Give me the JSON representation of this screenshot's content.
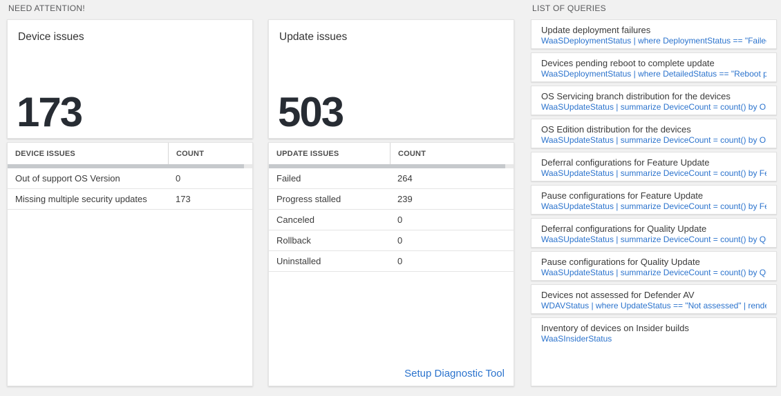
{
  "colors": {
    "accent_blue": "#2b73cd",
    "big_number_color": "#272c33",
    "page_background": "#f1f1f1"
  },
  "sections": {
    "need_attention": {
      "label": "NEED ATTENTION!"
    },
    "list_of_queries": {
      "label": "LIST OF QUERIES"
    }
  },
  "device_issues": {
    "title": "Device issues",
    "big_number": "173",
    "table": {
      "headers": [
        "DEVICE ISSUES",
        "COUNT"
      ],
      "rows": [
        {
          "label": "Out of support OS Version",
          "count": "0"
        },
        {
          "label": "Missing multiple security updates",
          "count": "173"
        }
      ]
    }
  },
  "update_issues": {
    "title": "Update issues",
    "big_number": "503",
    "table": {
      "headers": [
        "UPDATE ISSUES",
        "COUNT"
      ],
      "rows": [
        {
          "label": "Failed",
          "count": "264"
        },
        {
          "label": "Progress stalled",
          "count": "239"
        },
        {
          "label": "Canceled",
          "count": "0"
        },
        {
          "label": "Rollback",
          "count": "0"
        },
        {
          "label": "Uninstalled",
          "count": "0"
        }
      ]
    },
    "link_label": "Setup Diagnostic Tool"
  },
  "queries": [
    {
      "title": "Update deployment failures",
      "query": "WaaSDeploymentStatus | where DeploymentStatus == \"Failed\" |..."
    },
    {
      "title": "Devices pending reboot to complete update",
      "query": "WaaSDeploymentStatus | where DetailedStatus == \"Reboot pend..."
    },
    {
      "title": "OS Servicing branch distribution for the devices",
      "query": "WaaSUpdateStatus | summarize DeviceCount = count() by OSSer..."
    },
    {
      "title": "OS Edition distribution for the devices",
      "query": "WaaSUpdateStatus | summarize DeviceCount = count() by OSEdit..."
    },
    {
      "title": "Deferral configurations for Feature Update",
      "query": "WaaSUpdateStatus | summarize DeviceCount = count() by Featur..."
    },
    {
      "title": "Pause configurations for Feature Update",
      "query": "WaaSUpdateStatus | summarize DeviceCount = count() by Featur..."
    },
    {
      "title": "Deferral configurations for Quality Update",
      "query": "WaaSUpdateStatus | summarize DeviceCount = count() by Qualit..."
    },
    {
      "title": "Pause configurations for Quality Update",
      "query": "WaaSUpdateStatus | summarize DeviceCount = count() by Qualit..."
    },
    {
      "title": "Devices not assessed for Defender AV",
      "query": "WDAVStatus | where UpdateStatus == \"Not assessed\" | render ta..."
    },
    {
      "title": "Inventory of devices on Insider builds",
      "query": "WaaSInsiderStatus"
    }
  ]
}
